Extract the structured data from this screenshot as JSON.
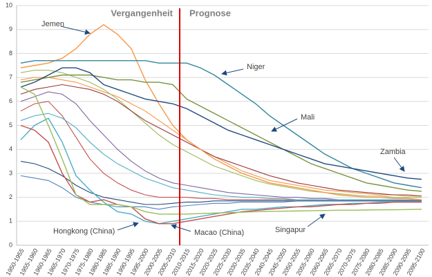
{
  "chart_data": {
    "type": "line",
    "annotations": [
      "Vergangenheit",
      "Prognose"
    ],
    "categories": [
      "1950-1955",
      "1955-1960",
      "1960-1965",
      "1965-1970",
      "1970-1975",
      "1975-1980",
      "1980-1985",
      "1985-1990",
      "1990-1995",
      "1995-2000",
      "2000-2005",
      "2005-2010",
      "2010-2015",
      "2015-2020",
      "2020-2025",
      "2025-2030",
      "2030-2035",
      "2035-2040",
      "2040-2045",
      "2045-2050",
      "2050-2055",
      "2055-2060",
      "2060-2065",
      "2065-2070",
      "2070-2075",
      "2075-2080",
      "2080-2085",
      "2085-2090",
      "2090-2095",
      "2095-2100"
    ],
    "ylim": [
      0,
      10
    ],
    "yticks": [
      0,
      1,
      2,
      3,
      4,
      5,
      6,
      7,
      8,
      9,
      10
    ],
    "grid": true,
    "series": [
      {
        "color": "#8064a2",
        "values": [
          6.0,
          6.2,
          6.4,
          6.3,
          5.9,
          5.2,
          4.6,
          4.0,
          3.5,
          3.1,
          2.8,
          2.6,
          2.5,
          2.4,
          2.3,
          2.2,
          2.15,
          2.1,
          2.05,
          2.0,
          2.0,
          1.95,
          1.95,
          1.9,
          1.9,
          1.9,
          1.9,
          1.9,
          1.9,
          1.9
        ]
      },
      {
        "color": "#c0504d",
        "values": [
          5.6,
          5.9,
          6.0,
          5.4,
          4.5,
          3.6,
          3.0,
          2.6,
          2.3,
          2.1,
          2.0,
          2.0,
          2.0,
          1.95,
          1.95,
          1.9,
          1.9,
          1.9,
          1.9,
          1.9,
          1.9,
          1.9,
          1.9,
          1.9,
          1.9,
          1.9,
          1.9,
          1.9,
          1.9,
          1.9
        ]
      },
      {
        "color": "#4f81bd",
        "values": [
          2.9,
          2.8,
          2.7,
          2.4,
          2.0,
          1.8,
          1.7,
          1.6,
          1.6,
          1.6,
          1.5,
          1.6,
          1.65,
          1.7,
          1.75,
          1.75,
          1.8,
          1.8,
          1.8,
          1.8,
          1.85,
          1.85,
          1.85,
          1.85,
          1.85,
          1.85,
          1.85,
          1.85,
          1.85,
          1.85
        ]
      },
      {
        "color": "#f79646",
        "values": [
          6.9,
          7.0,
          7.0,
          6.9,
          6.8,
          6.6,
          6.4,
          6.2,
          5.9,
          5.6,
          5.2,
          4.8,
          4.4,
          4.0,
          3.7,
          3.4,
          3.1,
          2.9,
          2.7,
          2.6,
          2.5,
          2.4,
          2.3,
          2.25,
          2.2,
          2.15,
          2.1,
          2.1,
          2.05,
          2.05
        ]
      },
      {
        "color": "#4bacc6",
        "values": [
          5.2,
          5.4,
          5.5,
          5.3,
          4.9,
          4.3,
          3.8,
          3.4,
          3.1,
          2.8,
          2.6,
          2.4,
          2.3,
          2.2,
          2.1,
          2.05,
          2.0,
          2.0,
          1.95,
          1.95,
          1.9,
          1.9,
          1.9,
          1.9,
          1.9,
          1.9,
          1.9,
          1.9,
          1.9,
          1.9
        ]
      },
      {
        "color": "#9bbb59",
        "values": [
          7.2,
          7.3,
          7.3,
          7.2,
          7.0,
          6.8,
          6.5,
          6.1,
          5.6,
          5.1,
          4.6,
          4.2,
          3.9,
          3.6,
          3.3,
          3.1,
          2.9,
          2.7,
          2.55,
          2.45,
          2.35,
          2.25,
          2.2,
          2.15,
          2.1,
          2.05,
          2.05,
          2.0,
          2.0,
          2.0
        ]
      },
      {
        "color": "#1f497d",
        "values": [
          3.5,
          3.4,
          3.2,
          2.9,
          2.5,
          2.2,
          2.0,
          1.9,
          1.8,
          1.7,
          1.7,
          1.75,
          1.8,
          1.8,
          1.85,
          1.85,
          1.85,
          1.85,
          1.85,
          1.85,
          1.85,
          1.85,
          1.85,
          1.85,
          1.85,
          1.85,
          1.85,
          1.85,
          1.85,
          1.85
        ]
      },
      {
        "color": "#953735",
        "values": [
          6.3,
          6.5,
          6.6,
          6.7,
          6.6,
          6.5,
          6.3,
          6.0,
          5.6,
          5.2,
          4.9,
          4.6,
          4.3,
          4.0,
          3.7,
          3.5,
          3.3,
          3.1,
          2.9,
          2.75,
          2.6,
          2.5,
          2.4,
          2.3,
          2.25,
          2.2,
          2.15,
          2.1,
          2.1,
          2.05
        ]
      },
      {
        "name": "Jemen",
        "color": "#f79646",
        "values": [
          7.4,
          7.5,
          7.6,
          7.8,
          8.2,
          8.8,
          9.2,
          8.8,
          8.2,
          6.9,
          5.9,
          5.0,
          4.4,
          4.0,
          3.6,
          3.3,
          3.0,
          2.8,
          2.6,
          2.5,
          2.4,
          2.3,
          2.2,
          2.1,
          2.05,
          2.0,
          2.0,
          1.95,
          1.95,
          1.9
        ]
      },
      {
        "name": "Niger",
        "color": "#31859c",
        "values": [
          7.6,
          7.7,
          7.7,
          7.7,
          7.7,
          7.7,
          7.7,
          7.7,
          7.7,
          7.7,
          7.6,
          7.6,
          7.6,
          7.4,
          7.1,
          6.7,
          6.3,
          5.9,
          5.4,
          5.0,
          4.6,
          4.2,
          3.8,
          3.5,
          3.2,
          3.0,
          2.8,
          2.6,
          2.5,
          2.4
        ]
      },
      {
        "name": "Mali",
        "color": "#77933c",
        "values": [
          6.8,
          6.9,
          7.0,
          7.1,
          7.1,
          7.1,
          7.0,
          6.9,
          6.9,
          6.8,
          6.8,
          6.7,
          6.1,
          5.8,
          5.5,
          5.2,
          4.9,
          4.6,
          4.3,
          4.0,
          3.7,
          3.4,
          3.2,
          3.0,
          2.8,
          2.6,
          2.5,
          2.4,
          2.3,
          2.25
        ]
      },
      {
        "name": "Zambia",
        "color": "#1f497d",
        "values": [
          6.6,
          6.8,
          7.1,
          7.4,
          7.4,
          7.2,
          6.7,
          6.5,
          6.3,
          6.1,
          6.0,
          5.9,
          5.7,
          5.4,
          5.1,
          4.8,
          4.6,
          4.4,
          4.2,
          4.0,
          3.8,
          3.6,
          3.4,
          3.3,
          3.2,
          3.1,
          3.0,
          2.9,
          2.8,
          2.75
        ]
      },
      {
        "name": "Hongkong (China)",
        "color": "#4bacc6",
        "values": [
          4.4,
          5.0,
          5.3,
          4.3,
          2.9,
          2.3,
          1.8,
          1.4,
          1.3,
          1.0,
          0.9,
          1.0,
          1.1,
          1.2,
          1.3,
          1.4,
          1.5,
          1.5,
          1.55,
          1.6,
          1.6,
          1.65,
          1.7,
          1.7,
          1.75,
          1.75,
          1.8,
          1.8,
          1.8,
          1.8
        ]
      },
      {
        "name": "Macao (China)",
        "color": "#c0504d",
        "values": [
          5.0,
          4.8,
          4.3,
          3.0,
          2.1,
          1.8,
          1.9,
          1.7,
          1.6,
          1.1,
          0.9,
          0.9,
          1.0,
          1.1,
          1.2,
          1.3,
          1.4,
          1.45,
          1.5,
          1.55,
          1.6,
          1.6,
          1.65,
          1.7,
          1.7,
          1.75,
          1.75,
          1.8,
          1.8,
          1.8
        ]
      },
      {
        "name": "Singapur",
        "color": "#9bbb59",
        "values": [
          6.6,
          6.3,
          5.0,
          3.6,
          2.1,
          1.7,
          1.7,
          1.7,
          1.6,
          1.4,
          1.3,
          1.3,
          1.3,
          1.32,
          1.34,
          1.36,
          1.38,
          1.4,
          1.41,
          1.42,
          1.43,
          1.44,
          1.45,
          1.46,
          1.46,
          1.47,
          1.48,
          1.48,
          1.49,
          1.5
        ]
      }
    ]
  }
}
